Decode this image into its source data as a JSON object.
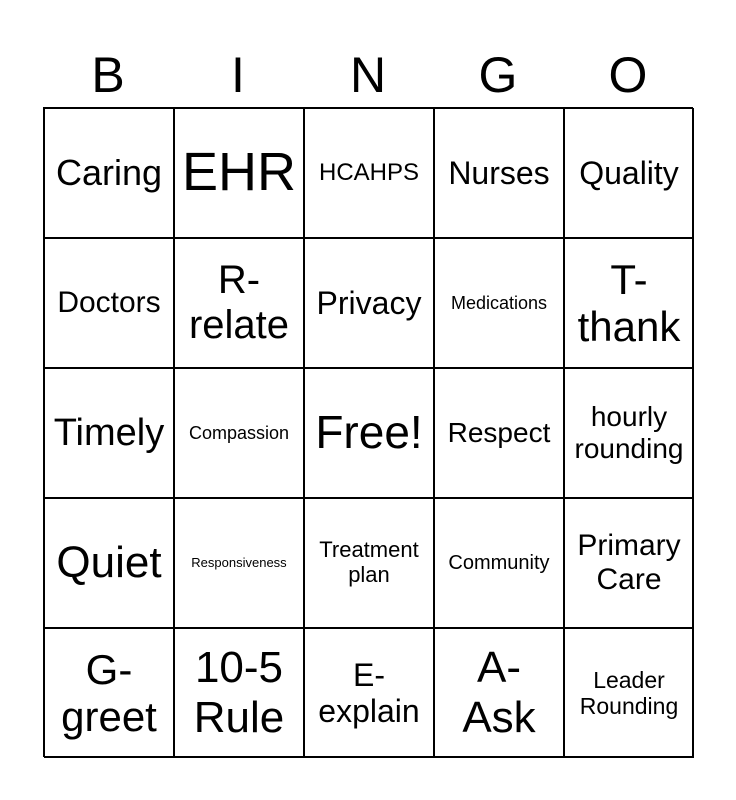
{
  "header": [
    "B",
    "I",
    "N",
    "G",
    "O"
  ],
  "cells": [
    {
      "text": "Caring",
      "size": 36
    },
    {
      "text": "EHR",
      "size": 54
    },
    {
      "text": "HCAHPS",
      "size": 24
    },
    {
      "text": "Nurses",
      "size": 32
    },
    {
      "text": "Quality",
      "size": 32
    },
    {
      "text": "Doctors",
      "size": 30
    },
    {
      "text": "R-\nrelate",
      "size": 40
    },
    {
      "text": "Privacy",
      "size": 32
    },
    {
      "text": "Medications",
      "size": 18
    },
    {
      "text": "T-\nthank",
      "size": 42
    },
    {
      "text": "Timely",
      "size": 38
    },
    {
      "text": "Compassion",
      "size": 18
    },
    {
      "text": "Free!",
      "size": 46
    },
    {
      "text": "Respect",
      "size": 28
    },
    {
      "text": "hourly\nrounding",
      "size": 28
    },
    {
      "text": "Quiet",
      "size": 44
    },
    {
      "text": "Responsiveness",
      "size": 13
    },
    {
      "text": "Treatment\nplan",
      "size": 22
    },
    {
      "text": "Community",
      "size": 20
    },
    {
      "text": "Primary\nCare",
      "size": 30
    },
    {
      "text": "G-\ngreet",
      "size": 42
    },
    {
      "text": "10-5\nRule",
      "size": 44
    },
    {
      "text": "E-\nexplain",
      "size": 32
    },
    {
      "text": "A-\nAsk",
      "size": 44
    },
    {
      "text": "Leader\nRounding",
      "size": 23
    }
  ]
}
